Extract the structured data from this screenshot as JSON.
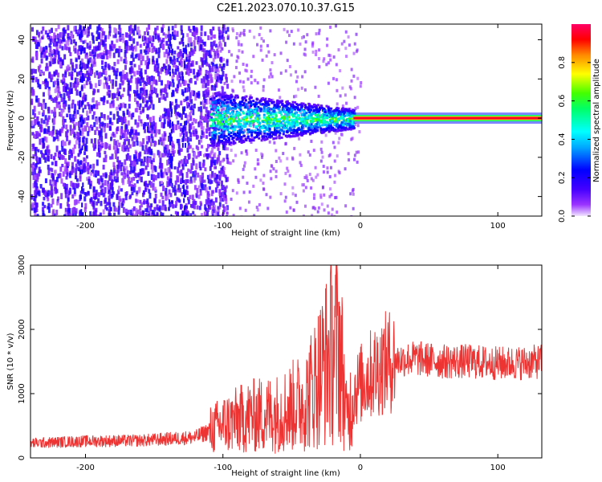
{
  "title": "C2E1.2023.070.10.37.G15",
  "chart_data": [
    {
      "type": "heatmap",
      "name": "spectrogram",
      "xlabel": "Height of straight line (km)",
      "ylabel": "Frequency (Hz)",
      "xlim": [
        -240,
        132
      ],
      "ylim": [
        -50,
        48
      ],
      "xticks": [
        -200,
        -100,
        0,
        100
      ],
      "yticks": [
        -40,
        -20,
        0,
        20,
        40
      ],
      "colorbar": {
        "label": "Normalized spectral amplitude",
        "range": [
          0.0,
          1.0
        ],
        "ticks": [
          0.0,
          0.2,
          0.4,
          0.6,
          0.8
        ],
        "colormap": [
          "#f2e6ff",
          "#7f00ff",
          "#0000ff",
          "#00ffff",
          "#00ff00",
          "#ffff00",
          "#ff0000",
          "#ff0080"
        ]
      },
      "features": [
        {
          "x_range": [
            -240,
            -103
          ],
          "amplitude": 0.12,
          "description": "noise"
        },
        {
          "x_range": [
            -110,
            -5
          ],
          "frequency_hz": 0,
          "amplitude": 0.45
        },
        {
          "x_range": [
            -5,
            132
          ],
          "frequency_hz": 0,
          "amplitude": 0.95
        }
      ]
    },
    {
      "type": "line",
      "name": "snr",
      "xlabel": "Height of straight line (km)",
      "ylabel": "SNR (10 * v/v)",
      "xlim": [
        -240,
        132
      ],
      "ylim": [
        0,
        3000
      ],
      "xticks": [
        -200,
        -100,
        0,
        100
      ],
      "yticks": [
        0,
        1000,
        2000,
        3000
      ],
      "color": "#ee3333",
      "x": [
        -240,
        -200,
        -160,
        -120,
        -100,
        -80,
        -60,
        -40,
        -30,
        -20,
        -15,
        -10,
        -5,
        0,
        10,
        20,
        40,
        60,
        80,
        100,
        120,
        132
      ],
      "values": [
        230,
        260,
        270,
        320,
        520,
        650,
        700,
        900,
        1300,
        1700,
        1800,
        600,
        1000,
        1150,
        1350,
        1500,
        1550,
        1500,
        1500,
        1470,
        1480,
        1500
      ]
    }
  ]
}
